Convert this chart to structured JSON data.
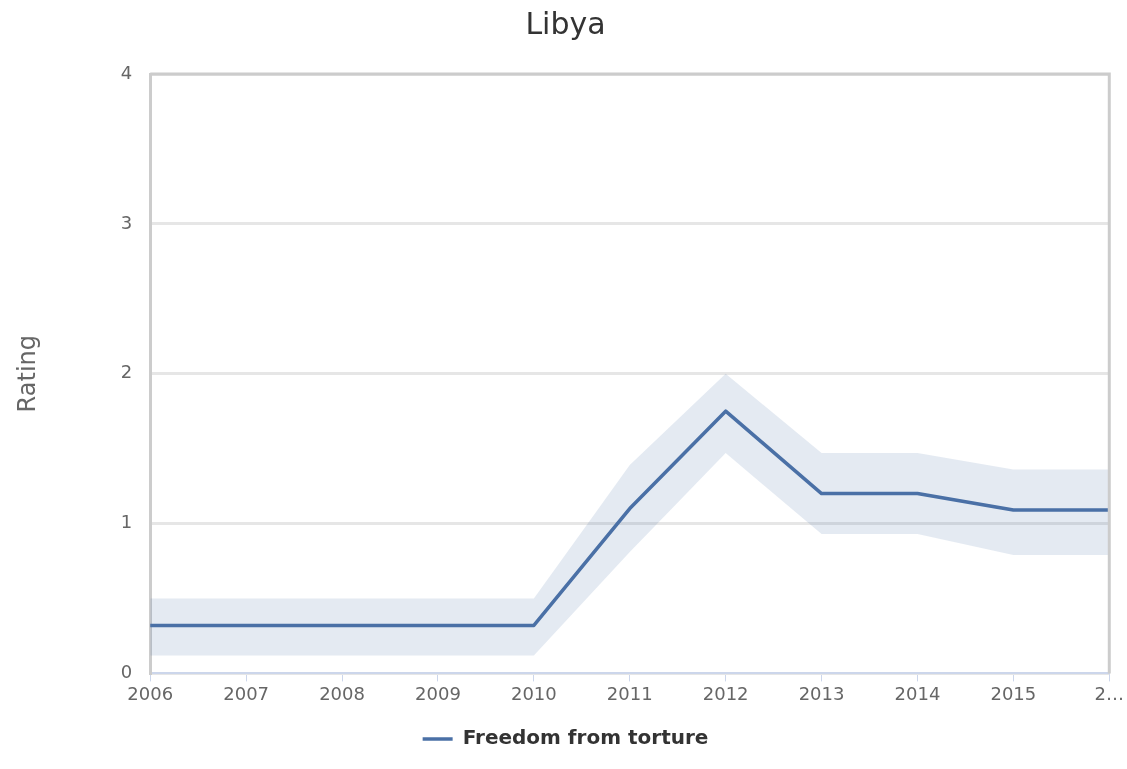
{
  "chart_data": {
    "type": "line",
    "title": "Libya",
    "ylabel": "Rating",
    "categories": [
      "2006",
      "2007",
      "2008",
      "2009",
      "2010",
      "2011",
      "2012",
      "2013",
      "2014",
      "2015",
      "2…"
    ],
    "series": [
      {
        "name": "Freedom from torture",
        "color": "#4a70a6",
        "values": [
          0.32,
          0.32,
          0.32,
          0.32,
          0.32,
          1.1,
          1.75,
          1.2,
          1.2,
          1.09,
          1.09
        ],
        "lower": [
          0.12,
          0.12,
          0.12,
          0.12,
          0.12,
          0.81,
          1.47,
          0.93,
          0.93,
          0.79,
          0.79
        ],
        "upper": [
          0.5,
          0.5,
          0.5,
          0.5,
          0.5,
          1.39,
          2.0,
          1.47,
          1.47,
          1.36,
          1.36
        ]
      }
    ],
    "ylim": [
      0,
      4
    ],
    "yticks": [
      0,
      1,
      2,
      3,
      4
    ],
    "grid": "y",
    "legend": "bottom",
    "marker": "none",
    "line_style": "solid"
  }
}
